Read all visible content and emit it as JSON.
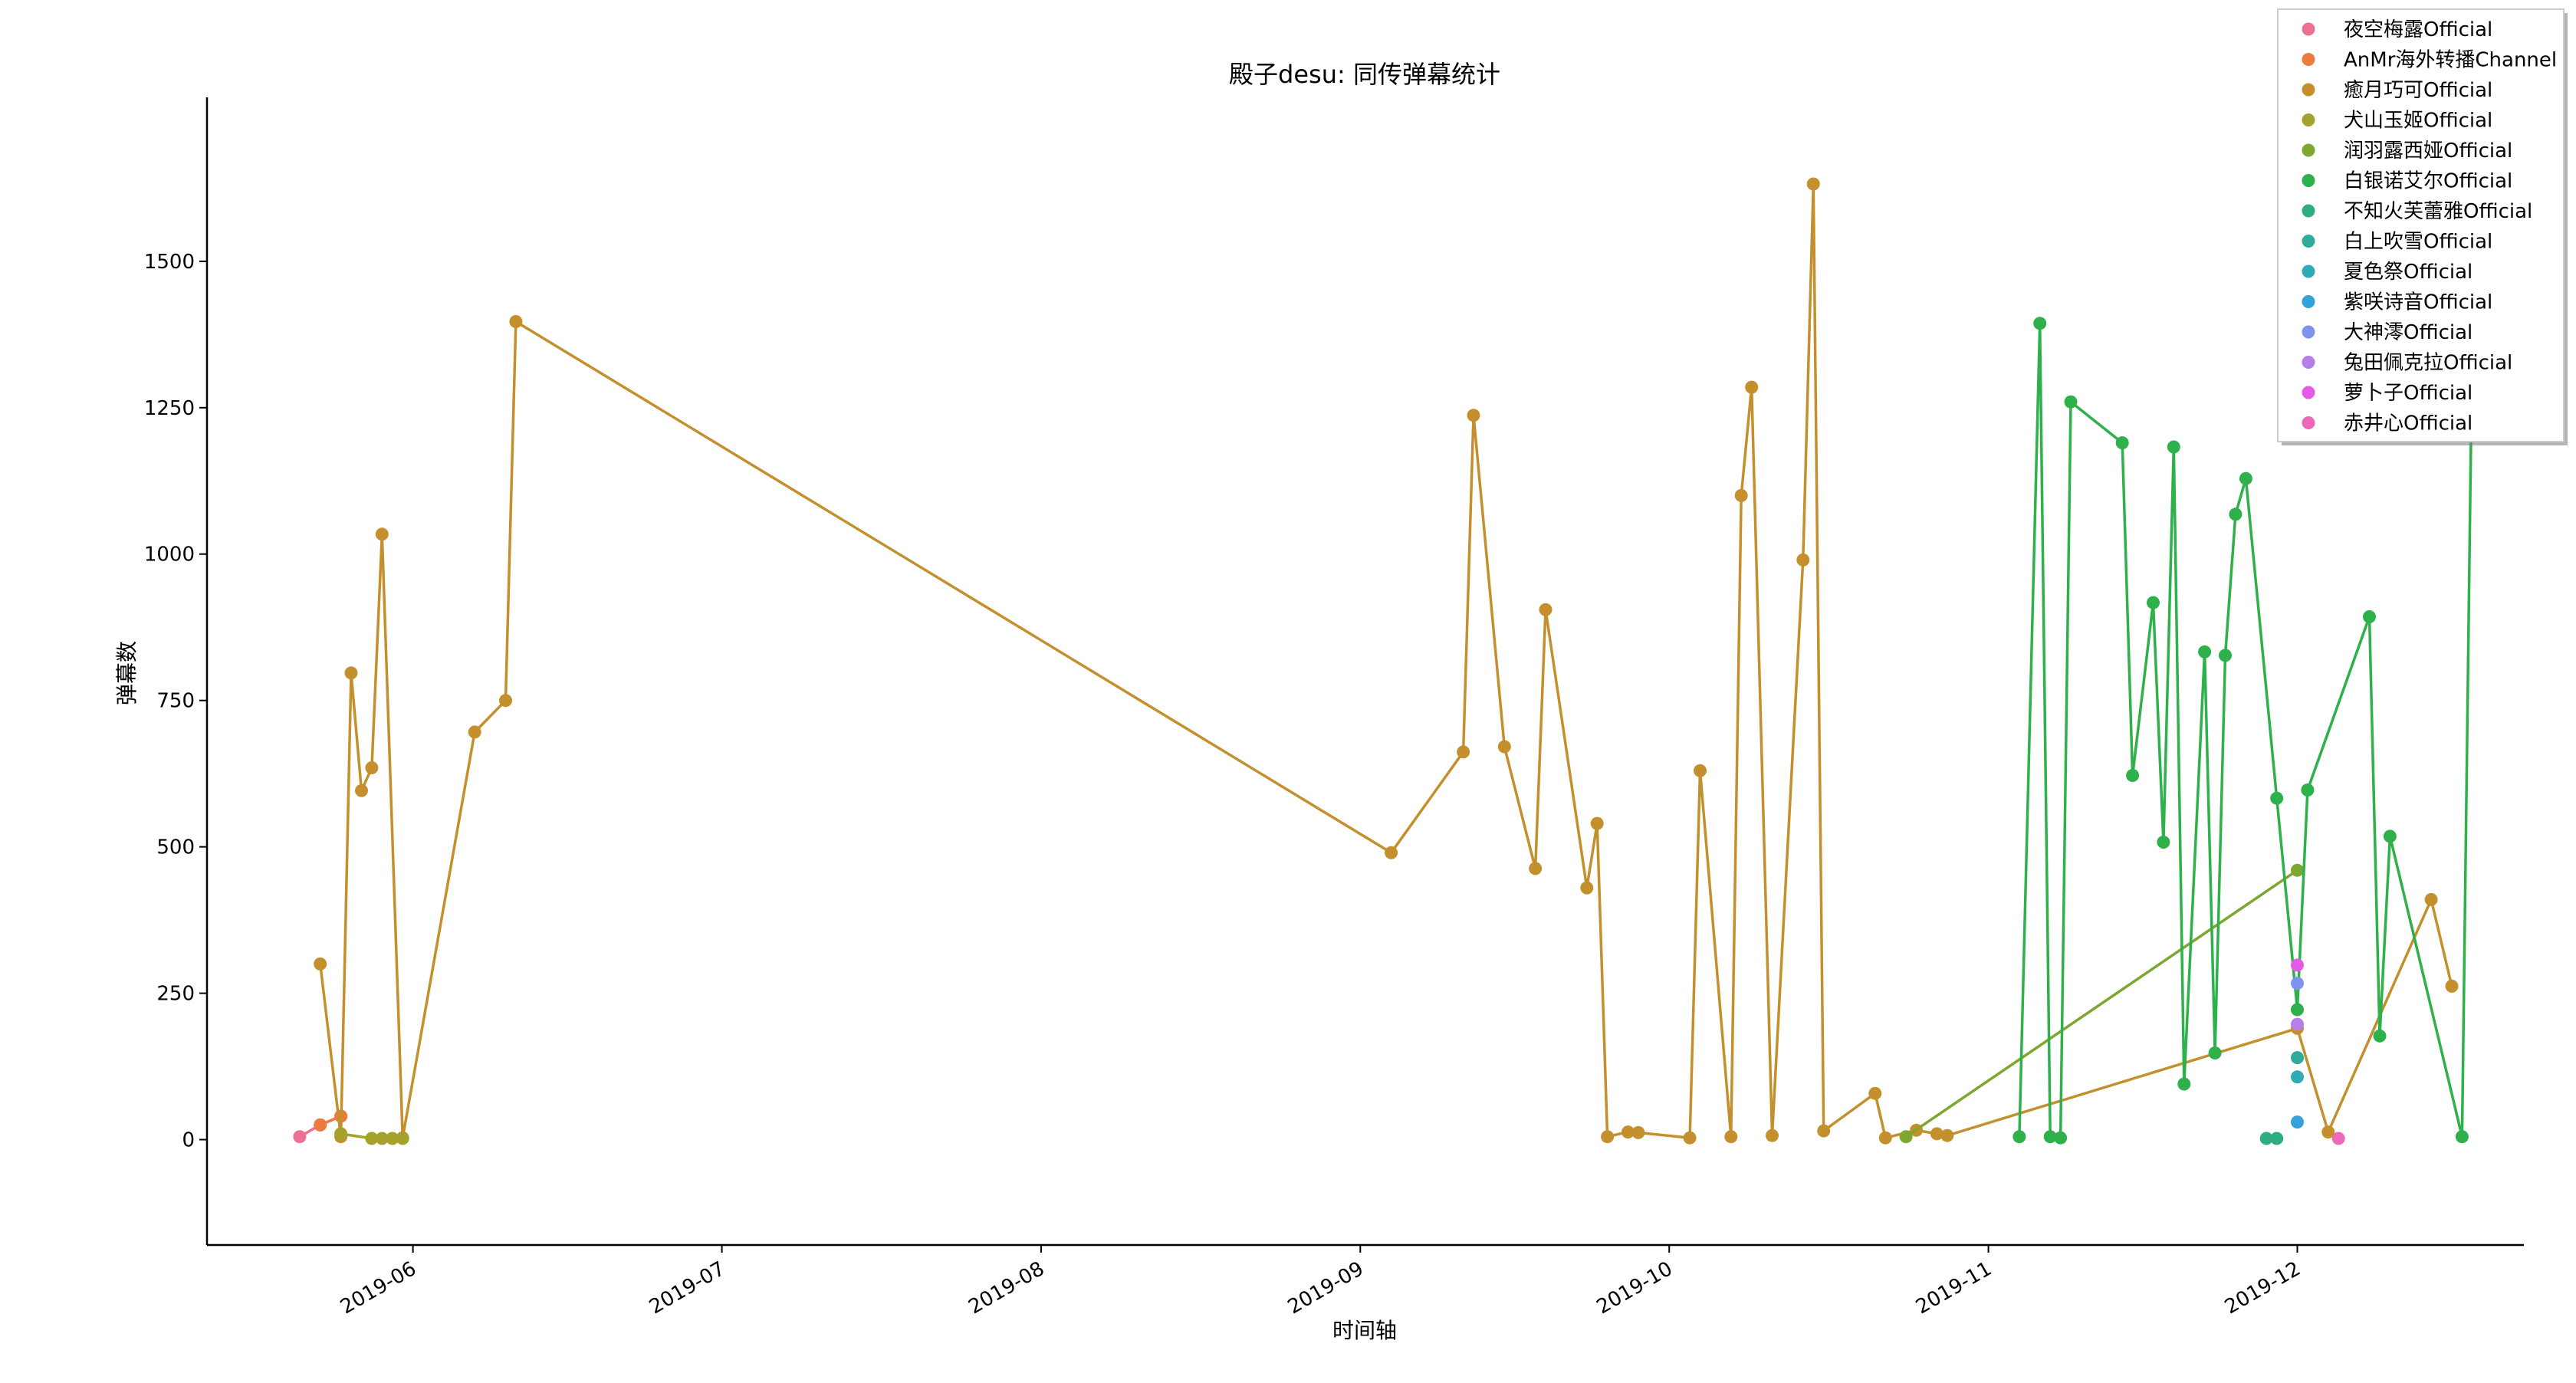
{
  "chart_data": {
    "type": "line",
    "title": "殿子desu: 同传弹幕统计",
    "xlabel": "时间轴",
    "ylabel": "弹幕数",
    "x_type": "date",
    "xlim": [
      "2019-05-12",
      "2019-12-23"
    ],
    "ylim": [
      -180,
      1780
    ],
    "x_ticks": [
      "2019-06-01",
      "2019-07-01",
      "2019-08-01",
      "2019-09-01",
      "2019-10-01",
      "2019-11-01",
      "2019-12-01"
    ],
    "x_tick_labels": [
      "2019-06",
      "2019-07",
      "2019-08",
      "2019-09",
      "2019-10",
      "2019-11",
      "2019-12"
    ],
    "y_ticks": [
      0,
      250,
      500,
      750,
      1000,
      1250,
      1500
    ],
    "y_tick_labels": [
      "0",
      "250",
      "500",
      "750",
      "1000",
      "1250",
      "1500"
    ],
    "grid": false,
    "legend_position": "top-right",
    "series": [
      {
        "name": "夜空梅露Official",
        "color": "#ec7093",
        "x": [
          "2019-05-21",
          "2019-05-23",
          "2019-05-25"
        ],
        "y": [
          5,
          25,
          40
        ]
      },
      {
        "name": "AnMr海外转播Channel",
        "color": "#ee7a3e",
        "x": [
          "2019-05-23",
          "2019-05-25"
        ],
        "y": [
          25,
          40
        ]
      },
      {
        "name": "癒月巧可Official",
        "color": "#c4902e",
        "x": [
          "2019-05-23",
          "2019-05-25",
          "2019-05-26",
          "2019-05-27",
          "2019-05-28",
          "2019-05-29",
          "2019-05-31",
          "2019-06-07",
          "2019-06-10",
          "2019-06-11",
          "2019-09-04",
          "2019-09-11",
          "2019-09-12",
          "2019-09-15",
          "2019-09-18",
          "2019-09-19",
          "2019-09-23",
          "2019-09-24",
          "2019-09-25",
          "2019-09-27",
          "2019-09-28",
          "2019-10-03",
          "2019-10-04",
          "2019-10-07",
          "2019-10-08",
          "2019-10-09",
          "2019-10-11",
          "2019-10-14",
          "2019-10-15",
          "2019-10-16",
          "2019-10-21",
          "2019-10-22",
          "2019-10-25",
          "2019-10-27",
          "2019-10-28",
          "2019-12-01",
          "2019-12-04",
          "2019-12-14",
          "2019-12-16"
        ],
        "y": [
          300,
          5,
          797,
          596,
          635,
          1034,
          3,
          696,
          750,
          1397,
          490,
          662,
          1237,
          671,
          463,
          905,
          430,
          540,
          5,
          13,
          12,
          3,
          630,
          5,
          1100,
          1285,
          7,
          990,
          1632,
          15,
          79,
          3,
          16,
          10,
          7,
          190,
          13,
          410,
          262
        ]
      },
      {
        "name": "犬山玉姬Official",
        "color": "#a4a22c",
        "x": [
          "2019-05-25",
          "2019-05-28",
          "2019-05-29",
          "2019-05-30",
          "2019-05-31"
        ],
        "y": [
          10,
          2,
          2,
          2,
          2
        ]
      },
      {
        "name": "润羽露西娅Official",
        "color": "#7da72f",
        "x": [
          "2019-10-24",
          "2019-12-01"
        ],
        "y": [
          5,
          460
        ]
      },
      {
        "name": "白银诺艾尔Official",
        "color": "#2eb04a",
        "x": [
          "2019-11-04",
          "2019-11-06",
          "2019-11-07",
          "2019-11-08",
          "2019-11-09",
          "2019-11-14",
          "2019-11-15",
          "2019-11-17",
          "2019-11-18",
          "2019-11-19",
          "2019-11-20",
          "2019-11-22",
          "2019-11-23",
          "2019-11-24",
          "2019-11-25",
          "2019-11-26",
          "2019-11-29",
          "2019-12-01",
          "2019-12-02",
          "2019-12-08",
          "2019-12-09",
          "2019-12-10",
          "2019-12-17",
          "2019-12-18"
        ],
        "y": [
          5,
          1394,
          5,
          3,
          1260,
          1190,
          622,
          917,
          508,
          1183,
          95,
          833,
          148,
          827,
          1068,
          1129,
          583,
          222,
          597,
          893,
          177,
          518,
          5,
          1380
        ]
      },
      {
        "name": "不知火芙蕾雅Official",
        "color": "#2ead80",
        "x": [
          "2019-11-28",
          "2019-11-29"
        ],
        "y": [
          2,
          2
        ]
      },
      {
        "name": "白上吹雪Official",
        "color": "#2eab9b",
        "x": [
          "2019-12-01"
        ],
        "y": [
          140
        ]
      },
      {
        "name": "夏色祭Official",
        "color": "#2fabb8",
        "x": [
          "2019-12-01"
        ],
        "y": [
          107
        ]
      },
      {
        "name": "紫咲诗音Official",
        "color": "#34a1d9",
        "x": [
          "2019-12-01"
        ],
        "y": [
          30
        ]
      },
      {
        "name": "大神澪Official",
        "color": "#7d93ec",
        "x": [
          "2019-12-01"
        ],
        "y": [
          267
        ]
      },
      {
        "name": "兔田佩克拉Official",
        "color": "#b57ee9",
        "x": [
          "2019-12-01"
        ],
        "y": [
          197
        ]
      },
      {
        "name": "萝卜子Official",
        "color": "#e45ae8",
        "x": [
          "2019-12-01"
        ],
        "y": [
          298
        ]
      },
      {
        "name": "赤井心Official",
        "color": "#ec68b9",
        "x": [
          "2019-12-05"
        ],
        "y": [
          2
        ]
      }
    ]
  }
}
